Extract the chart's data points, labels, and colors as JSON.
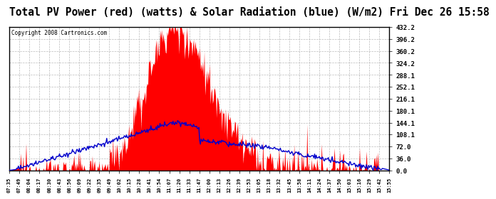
{
  "title": "Total PV Power (red) (watts) & Solar Radiation (blue) (W/m2) Fri Dec 26 15:58",
  "copyright": "Copyright 2008 Cartronics.com",
  "yticks": [
    0.0,
    36.0,
    72.0,
    108.1,
    144.1,
    180.1,
    216.1,
    252.1,
    288.1,
    324.2,
    360.2,
    396.2,
    432.2
  ],
  "ymax": 432.2,
  "ymin": 0.0,
  "bg_color": "#ffffff",
  "plot_bg_color": "#ffffff",
  "grid_color": "#bbbbbb",
  "fill_color": "#ff0000",
  "line_color": "#0000cc",
  "title_fontsize": 10.5,
  "xtick_labels": [
    "07:35",
    "07:49",
    "08:04",
    "08:17",
    "08:30",
    "08:43",
    "08:56",
    "09:09",
    "09:22",
    "09:35",
    "09:49",
    "10:02",
    "10:15",
    "10:28",
    "10:41",
    "10:54",
    "11:07",
    "11:20",
    "11:33",
    "11:47",
    "12:00",
    "12:13",
    "12:26",
    "12:39",
    "12:53",
    "13:05",
    "13:18",
    "13:32",
    "13:45",
    "13:58",
    "14:11",
    "14:24",
    "14:37",
    "14:50",
    "15:03",
    "15:16",
    "15:29",
    "15:42",
    "15:55"
  ]
}
